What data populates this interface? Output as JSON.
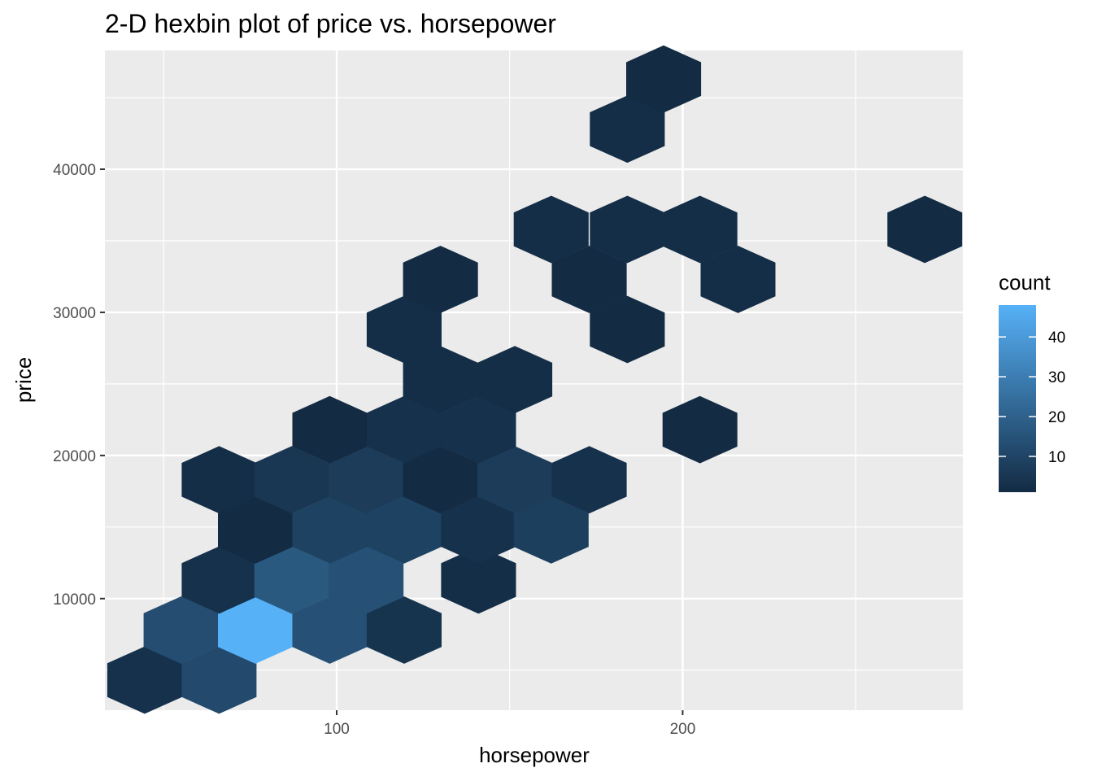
{
  "chart_data": {
    "type": "hexbin",
    "title": "2-D hexbin plot of price vs. horsepower",
    "xlabel": "horsepower",
    "ylabel": "price",
    "xlim": [
      33,
      281
    ],
    "ylim": [
      2200,
      48300
    ],
    "x_ticks": [
      100,
      200
    ],
    "y_ticks": [
      10000,
      20000,
      30000,
      40000
    ],
    "grid": true,
    "legend": {
      "title": "count",
      "ticks": [
        10,
        20,
        30,
        40
      ],
      "position": "right",
      "range": [
        1,
        48
      ]
    },
    "colors": {
      "low": "#132B43",
      "high": "#56B1F7",
      "panel": "#EBEBEB",
      "grid": "#FFFFFF"
    },
    "bins": [
      {
        "x": 44.5,
        "y": 4300,
        "count": 3
      },
      {
        "x": 66,
        "y": 4300,
        "count": 12
      },
      {
        "x": 55,
        "y": 7800,
        "count": 13
      },
      {
        "x": 76.5,
        "y": 7800,
        "count": 48
      },
      {
        "x": 98,
        "y": 7800,
        "count": 14
      },
      {
        "x": 119.5,
        "y": 7800,
        "count": 4
      },
      {
        "x": 66,
        "y": 11300,
        "count": 3
      },
      {
        "x": 87,
        "y": 11300,
        "count": 17
      },
      {
        "x": 108.5,
        "y": 11300,
        "count": 14
      },
      {
        "x": 141,
        "y": 11300,
        "count": 2
      },
      {
        "x": 76.5,
        "y": 14800,
        "count": 1
      },
      {
        "x": 98,
        "y": 14800,
        "count": 9
      },
      {
        "x": 119.5,
        "y": 14800,
        "count": 9
      },
      {
        "x": 141,
        "y": 14800,
        "count": 3
      },
      {
        "x": 162,
        "y": 14800,
        "count": 8
      },
      {
        "x": 66,
        "y": 18300,
        "count": 2
      },
      {
        "x": 87,
        "y": 18300,
        "count": 5
      },
      {
        "x": 108.5,
        "y": 18300,
        "count": 7
      },
      {
        "x": 130,
        "y": 18300,
        "count": 1
      },
      {
        "x": 151.5,
        "y": 18300,
        "count": 7
      },
      {
        "x": 173,
        "y": 18300,
        "count": 3
      },
      {
        "x": 98,
        "y": 21800,
        "count": 1
      },
      {
        "x": 119.5,
        "y": 21800,
        "count": 3
      },
      {
        "x": 141,
        "y": 21800,
        "count": 3
      },
      {
        "x": 205,
        "y": 21800,
        "count": 1
      },
      {
        "x": 130,
        "y": 25300,
        "count": 2
      },
      {
        "x": 151.5,
        "y": 25300,
        "count": 2
      },
      {
        "x": 119.5,
        "y": 28800,
        "count": 2
      },
      {
        "x": 184,
        "y": 28800,
        "count": 1
      },
      {
        "x": 130,
        "y": 32300,
        "count": 1
      },
      {
        "x": 173,
        "y": 32300,
        "count": 1
      },
      {
        "x": 216,
        "y": 32300,
        "count": 2
      },
      {
        "x": 162,
        "y": 35800,
        "count": 2
      },
      {
        "x": 184,
        "y": 35800,
        "count": 2
      },
      {
        "x": 205,
        "y": 35800,
        "count": 2
      },
      {
        "x": 270,
        "y": 35800,
        "count": 1
      },
      {
        "x": 184,
        "y": 42800,
        "count": 2
      },
      {
        "x": 194.5,
        "y": 46300,
        "count": 1
      }
    ]
  }
}
